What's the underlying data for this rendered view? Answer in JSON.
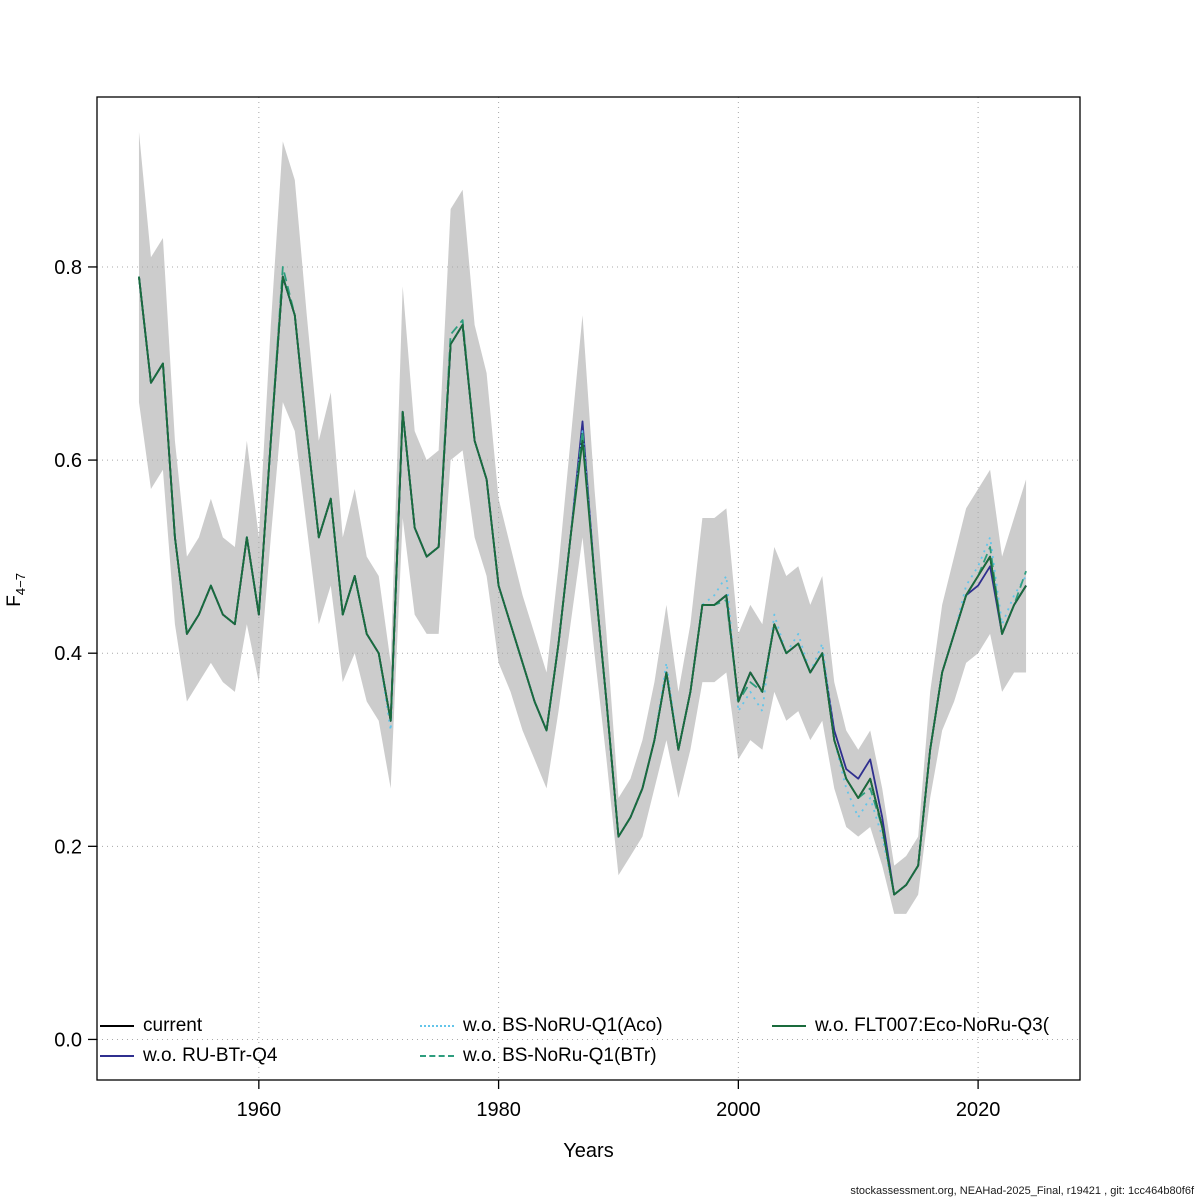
{
  "page": {
    "footer": "stockassessment.org, NEAHad-2025_Final, r19421 , git: 1cc464b80f6f"
  },
  "chart_data": {
    "type": "line",
    "title": "",
    "xlabel": "Years",
    "ylabel": "F",
    "ylabel_sub": "4−7",
    "x_ticks": [
      1960,
      1980,
      2000,
      2020
    ],
    "x_tick_labels": [
      "1960",
      "1980",
      "2000",
      "2020"
    ],
    "y_ticks": [
      0.0,
      0.2,
      0.4,
      0.6,
      0.8
    ],
    "y_tick_labels": [
      "0.0",
      "0.2",
      "0.4",
      "0.6",
      "0.8"
    ],
    "xlim": [
      1946.5,
      2028.5
    ],
    "ylim": [
      -0.042,
      0.976
    ],
    "grid": true,
    "grid_color": "#a8a8a8",
    "legend_position": "bottom-inside",
    "years": [
      1950,
      1951,
      1952,
      1953,
      1954,
      1955,
      1956,
      1957,
      1958,
      1959,
      1960,
      1961,
      1962,
      1963,
      1964,
      1965,
      1966,
      1967,
      1968,
      1969,
      1970,
      1971,
      1972,
      1973,
      1974,
      1975,
      1976,
      1977,
      1978,
      1979,
      1980,
      1981,
      1982,
      1983,
      1984,
      1985,
      1986,
      1987,
      1988,
      1989,
      1990,
      1991,
      1992,
      1993,
      1994,
      1995,
      1996,
      1997,
      1998,
      1999,
      2000,
      2001,
      2002,
      2003,
      2004,
      2005,
      2006,
      2007,
      2008,
      2009,
      2010,
      2011,
      2012,
      2013,
      2014,
      2015,
      2016,
      2017,
      2018,
      2019,
      2020,
      2021,
      2022,
      2023,
      2024
    ],
    "band": {
      "color": "#cccccc",
      "lower": [
        0.66,
        0.57,
        0.59,
        0.43,
        0.35,
        0.37,
        0.39,
        0.37,
        0.36,
        0.43,
        0.37,
        0.52,
        0.66,
        0.63,
        0.53,
        0.43,
        0.47,
        0.37,
        0.4,
        0.35,
        0.33,
        0.26,
        0.54,
        0.44,
        0.42,
        0.42,
        0.6,
        0.61,
        0.52,
        0.48,
        0.39,
        0.36,
        0.32,
        0.29,
        0.26,
        0.34,
        0.43,
        0.52,
        0.4,
        0.29,
        0.17,
        0.19,
        0.21,
        0.26,
        0.31,
        0.25,
        0.3,
        0.37,
        0.37,
        0.38,
        0.29,
        0.31,
        0.3,
        0.36,
        0.33,
        0.34,
        0.31,
        0.33,
        0.26,
        0.22,
        0.21,
        0.22,
        0.18,
        0.13,
        0.13,
        0.15,
        0.25,
        0.32,
        0.35,
        0.39,
        0.4,
        0.42,
        0.36,
        0.38,
        0.38
      ],
      "upper": [
        0.94,
        0.81,
        0.83,
        0.62,
        0.5,
        0.52,
        0.56,
        0.52,
        0.51,
        0.62,
        0.52,
        0.74,
        0.93,
        0.89,
        0.75,
        0.62,
        0.67,
        0.52,
        0.57,
        0.5,
        0.48,
        0.39,
        0.78,
        0.63,
        0.6,
        0.61,
        0.86,
        0.88,
        0.74,
        0.69,
        0.56,
        0.51,
        0.46,
        0.42,
        0.38,
        0.49,
        0.62,
        0.75,
        0.57,
        0.42,
        0.25,
        0.27,
        0.31,
        0.37,
        0.45,
        0.36,
        0.43,
        0.54,
        0.54,
        0.55,
        0.42,
        0.45,
        0.43,
        0.51,
        0.48,
        0.49,
        0.45,
        0.48,
        0.37,
        0.32,
        0.3,
        0.32,
        0.26,
        0.18,
        0.19,
        0.21,
        0.36,
        0.45,
        0.5,
        0.55,
        0.57,
        0.59,
        0.5,
        0.54,
        0.58
      ]
    },
    "series": [
      {
        "name": "current",
        "color": "#000000",
        "dash": "solid",
        "values": [
          0.79,
          0.68,
          0.7,
          0.52,
          0.42,
          0.44,
          0.47,
          0.44,
          0.43,
          0.52,
          0.44,
          0.62,
          0.79,
          0.75,
          0.63,
          0.52,
          0.56,
          0.44,
          0.48,
          0.42,
          0.4,
          0.33,
          0.65,
          0.53,
          0.5,
          0.51,
          0.72,
          0.74,
          0.62,
          0.58,
          0.47,
          0.43,
          0.39,
          0.35,
          0.32,
          0.41,
          0.52,
          0.63,
          0.48,
          0.35,
          0.21,
          0.23,
          0.26,
          0.31,
          0.38,
          0.3,
          0.36,
          0.45,
          0.45,
          0.46,
          0.35,
          0.38,
          0.36,
          0.43,
          0.4,
          0.41,
          0.38,
          0.4,
          0.31,
          0.27,
          0.25,
          0.27,
          0.22,
          0.15,
          0.16,
          0.18,
          0.3,
          0.38,
          0.42,
          0.46,
          0.48,
          0.5,
          0.42,
          0.45,
          0.47
        ]
      },
      {
        "name": "w.o. RU-BTr-Q4",
        "color": "#2f2f8f",
        "dash": "solid",
        "values": [
          0.79,
          0.68,
          0.7,
          0.52,
          0.42,
          0.44,
          0.47,
          0.44,
          0.43,
          0.52,
          0.44,
          0.62,
          0.79,
          0.75,
          0.63,
          0.52,
          0.56,
          0.44,
          0.48,
          0.42,
          0.4,
          0.33,
          0.65,
          0.53,
          0.5,
          0.51,
          0.72,
          0.74,
          0.62,
          0.58,
          0.47,
          0.43,
          0.39,
          0.35,
          0.32,
          0.41,
          0.52,
          0.64,
          0.48,
          0.35,
          0.21,
          0.23,
          0.26,
          0.31,
          0.38,
          0.3,
          0.36,
          0.45,
          0.45,
          0.46,
          0.35,
          0.38,
          0.36,
          0.43,
          0.4,
          0.41,
          0.38,
          0.4,
          0.32,
          0.28,
          0.27,
          0.29,
          0.23,
          0.15,
          0.16,
          0.18,
          0.3,
          0.38,
          0.42,
          0.46,
          0.47,
          0.49,
          0.42,
          0.45,
          0.47
        ]
      },
      {
        "name": "w.o. BS-NoRU-Q1(Aco)",
        "color": "#63c5ea",
        "dash": "dotted",
        "values": [
          0.79,
          0.68,
          0.7,
          0.52,
          0.42,
          0.44,
          0.47,
          0.44,
          0.43,
          0.52,
          0.44,
          0.62,
          0.79,
          0.75,
          0.63,
          0.52,
          0.56,
          0.44,
          0.48,
          0.42,
          0.4,
          0.32,
          0.65,
          0.53,
          0.5,
          0.51,
          0.72,
          0.74,
          0.62,
          0.58,
          0.47,
          0.43,
          0.39,
          0.35,
          0.32,
          0.41,
          0.52,
          0.63,
          0.48,
          0.35,
          0.21,
          0.23,
          0.26,
          0.31,
          0.39,
          0.3,
          0.36,
          0.45,
          0.46,
          0.48,
          0.34,
          0.36,
          0.34,
          0.44,
          0.4,
          0.42,
          0.38,
          0.41,
          0.31,
          0.26,
          0.23,
          0.25,
          0.21,
          0.15,
          0.16,
          0.18,
          0.3,
          0.38,
          0.42,
          0.47,
          0.49,
          0.52,
          0.43,
          0.46,
          0.48
        ]
      },
      {
        "name": "w.o. BS-NoRu-Q1(BTr)",
        "color": "#2e9d7e",
        "dash": "dashed",
        "values": [
          0.79,
          0.68,
          0.7,
          0.52,
          0.42,
          0.44,
          0.47,
          0.44,
          0.43,
          0.52,
          0.44,
          0.62,
          0.8,
          0.75,
          0.63,
          0.52,
          0.56,
          0.44,
          0.48,
          0.42,
          0.4,
          0.33,
          0.65,
          0.53,
          0.5,
          0.51,
          0.73,
          0.745,
          0.62,
          0.58,
          0.47,
          0.43,
          0.39,
          0.35,
          0.32,
          0.41,
          0.52,
          0.63,
          0.48,
          0.35,
          0.21,
          0.23,
          0.26,
          0.31,
          0.38,
          0.3,
          0.36,
          0.45,
          0.45,
          0.455,
          0.35,
          0.37,
          0.36,
          0.43,
          0.4,
          0.41,
          0.38,
          0.4,
          0.31,
          0.27,
          0.25,
          0.26,
          0.22,
          0.15,
          0.16,
          0.18,
          0.3,
          0.38,
          0.42,
          0.46,
          0.48,
          0.51,
          0.42,
          0.45,
          0.485
        ]
      },
      {
        "name": "w.o. FLT007:Eco-NoRu-Q3(",
        "color": "#1a6b3c",
        "dash": "solid",
        "values": [
          0.79,
          0.68,
          0.7,
          0.52,
          0.42,
          0.44,
          0.47,
          0.44,
          0.43,
          0.52,
          0.44,
          0.62,
          0.79,
          0.75,
          0.63,
          0.52,
          0.56,
          0.44,
          0.48,
          0.42,
          0.4,
          0.33,
          0.65,
          0.53,
          0.5,
          0.51,
          0.72,
          0.74,
          0.62,
          0.58,
          0.47,
          0.43,
          0.39,
          0.35,
          0.32,
          0.41,
          0.52,
          0.62,
          0.48,
          0.35,
          0.21,
          0.23,
          0.26,
          0.31,
          0.38,
          0.3,
          0.36,
          0.45,
          0.45,
          0.46,
          0.35,
          0.38,
          0.36,
          0.43,
          0.4,
          0.41,
          0.38,
          0.4,
          0.31,
          0.27,
          0.25,
          0.27,
          0.22,
          0.15,
          0.16,
          0.18,
          0.3,
          0.38,
          0.42,
          0.46,
          0.48,
          0.5,
          0.42,
          0.45,
          0.47
        ]
      }
    ]
  }
}
